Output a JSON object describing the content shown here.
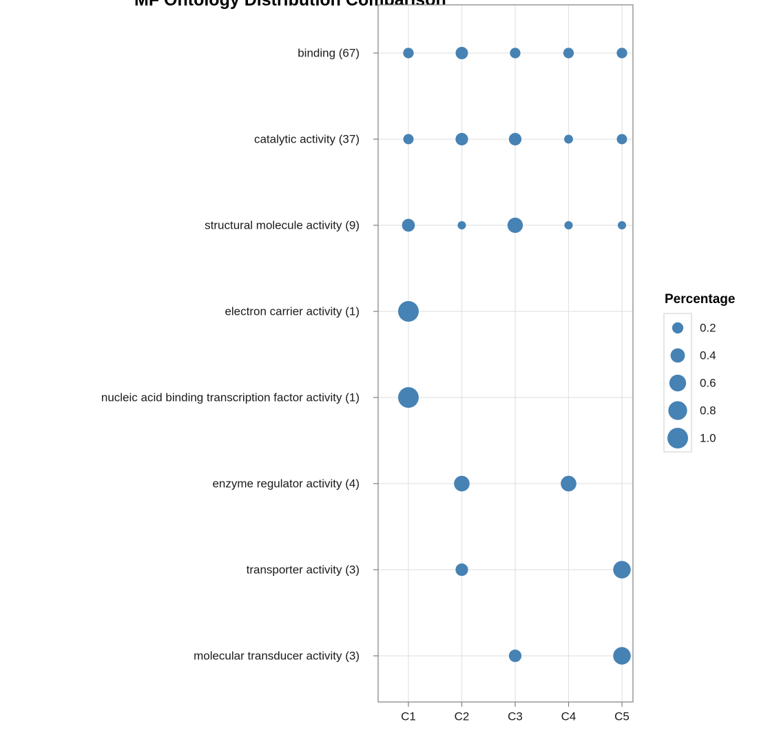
{
  "chart_data": {
    "type": "scatter",
    "title": "MF Ontology Distribution Comparison",
    "xlabel": "",
    "ylabel": "",
    "x_categories": [
      "C1",
      "C2",
      "C3",
      "C4",
      "C5"
    ],
    "y_categories": [
      "binding (67)",
      "catalytic activity (37)",
      "structural molecule activity (9)",
      "electron carrier activity (1)",
      "nucleic acid binding transcription factor activity (1)",
      "enzyme regulator activity (4)",
      "transporter activity (3)",
      "molecular transducer activity (3)"
    ],
    "size_variable": "Percentage",
    "point_color": "#4682b4",
    "grid": true,
    "legend_position": "right",
    "legend": {
      "title": "Percentage",
      "values": [
        0.2,
        0.4,
        0.6,
        0.8,
        1.0
      ],
      "labels": [
        "0.2",
        "0.4",
        "0.6",
        "0.8",
        "1.0"
      ]
    },
    "points": [
      {
        "x": "C1",
        "y": "binding (67)",
        "value": 0.17
      },
      {
        "x": "C2",
        "y": "binding (67)",
        "value": 0.27
      },
      {
        "x": "C3",
        "y": "binding (67)",
        "value": 0.17
      },
      {
        "x": "C4",
        "y": "binding (67)",
        "value": 0.17
      },
      {
        "x": "C5",
        "y": "binding (67)",
        "value": 0.17
      },
      {
        "x": "C1",
        "y": "catalytic activity (37)",
        "value": 0.16
      },
      {
        "x": "C2",
        "y": "catalytic activity (37)",
        "value": 0.28
      },
      {
        "x": "C3",
        "y": "catalytic activity (37)",
        "value": 0.28
      },
      {
        "x": "C4",
        "y": "catalytic activity (37)",
        "value": 0.1
      },
      {
        "x": "C5",
        "y": "catalytic activity (37)",
        "value": 0.16
      },
      {
        "x": "C1",
        "y": "structural molecule activity (9)",
        "value": 0.3
      },
      {
        "x": "C2",
        "y": "structural molecule activity (9)",
        "value": 0.08
      },
      {
        "x": "C3",
        "y": "structural molecule activity (9)",
        "value": 0.48
      },
      {
        "x": "C4",
        "y": "structural molecule activity (9)",
        "value": 0.08
      },
      {
        "x": "C5",
        "y": "structural molecule activity (9)",
        "value": 0.08
      },
      {
        "x": "C1",
        "y": "electron carrier activity (1)",
        "value": 1.0
      },
      {
        "x": "C1",
        "y": "nucleic acid binding transcription factor activity (1)",
        "value": 1.0
      },
      {
        "x": "C2",
        "y": "enzyme regulator activity (4)",
        "value": 0.5
      },
      {
        "x": "C4",
        "y": "enzyme regulator activity (4)",
        "value": 0.5
      },
      {
        "x": "C2",
        "y": "transporter activity (3)",
        "value": 0.28
      },
      {
        "x": "C5",
        "y": "transporter activity (3)",
        "value": 0.67
      },
      {
        "x": "C3",
        "y": "molecular transducer activity (3)",
        "value": 0.28
      },
      {
        "x": "C5",
        "y": "molecular transducer activity (3)",
        "value": 0.67
      }
    ]
  }
}
